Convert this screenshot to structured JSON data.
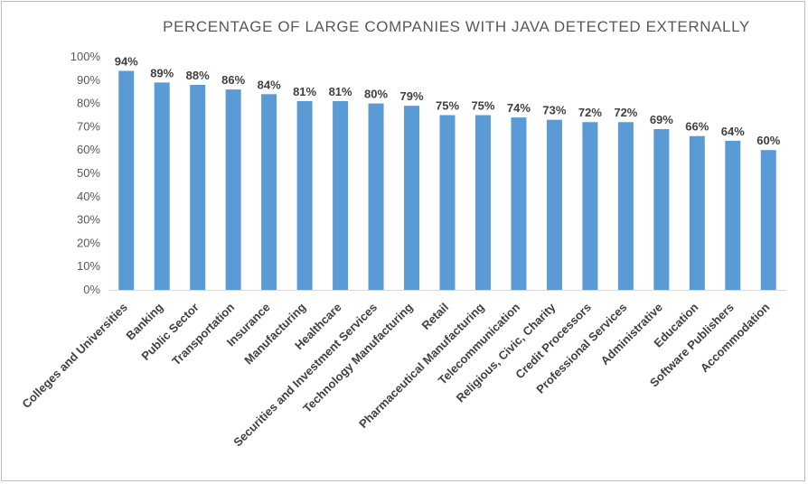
{
  "chart_data": {
    "type": "bar",
    "title": "PERCENTAGE OF LARGE COMPANIES WITH JAVA DETECTED EXTERNALLY",
    "xlabel": "",
    "ylabel": "",
    "ylim": [
      0,
      100
    ],
    "yticks": [
      "0%",
      "10%",
      "20%",
      "30%",
      "40%",
      "50%",
      "60%",
      "70%",
      "80%",
      "90%",
      "100%"
    ],
    "grid": false,
    "legend": "none",
    "bar_color": "#5b9bd5",
    "categories": [
      "Colleges and Universities",
      "Banking",
      "Public Sector",
      "Transportation",
      "Insurance",
      "Manufacturing",
      "Healthcare",
      "Securities and Investment Services",
      "Technology Manufacturing",
      "Retail",
      "Pharmaceutical  Manufacturing",
      "Telecommunication",
      "Religious, Civic, Charity",
      "Credit Processors",
      "Professional Services",
      "Administrative",
      "Education",
      "Software Publishers",
      "Accommodation"
    ],
    "values": [
      94,
      89,
      88,
      86,
      84,
      81,
      81,
      80,
      79,
      75,
      75,
      74,
      73,
      72,
      72,
      69,
      66,
      64,
      60
    ],
    "data_labels": [
      "94%",
      "89%",
      "88%",
      "86%",
      "84%",
      "81%",
      "81%",
      "80%",
      "79%",
      "75%",
      "75%",
      "74%",
      "73%",
      "72%",
      "72%",
      "69%",
      "66%",
      "64%",
      "60%"
    ]
  }
}
